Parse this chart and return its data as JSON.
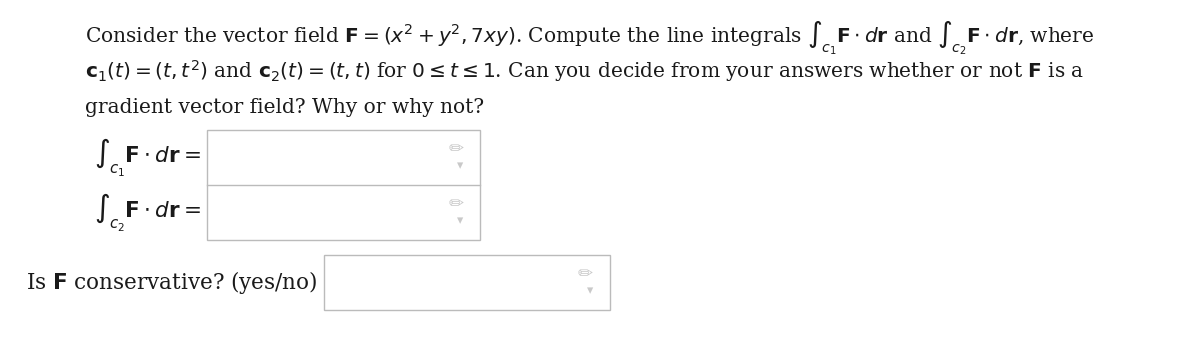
{
  "background_color": "#ffffff",
  "text_color": "#1a1a1a",
  "line1": "Consider the vector field $\\mathbf{F} = (x^2 + y^2, 7xy)$. Compute the line integrals $\\int_{c_1} \\mathbf{F} \\cdot d\\mathbf{r}$ and $\\int_{c_2} \\mathbf{F} \\cdot d\\mathbf{r}$, where",
  "line2": "$\\mathbf{c}_1(t) = (t, t^2)$ and $\\mathbf{c}_2(t) = (t, t)$ for $0 \\leq t \\leq 1$. Can you decide from your answers whether or not $\\mathbf{F}$ is a",
  "line3": "gradient vector field? Why or why not?",
  "label1": "$\\int_{c_1} \\mathbf{F} \\cdot d\\mathbf{r} =$",
  "label2": "$\\int_{c_2} \\mathbf{F} \\cdot d\\mathbf{r} =$",
  "label3": "Is $\\mathbf{F}$ conservative? (yes/no)",
  "box_edge_color": "#bbbbbb",
  "box_face_color": "#ffffff",
  "icon_color": "#b8b8b8",
  "font_size": 14.5,
  "label_font_size": 15.5
}
